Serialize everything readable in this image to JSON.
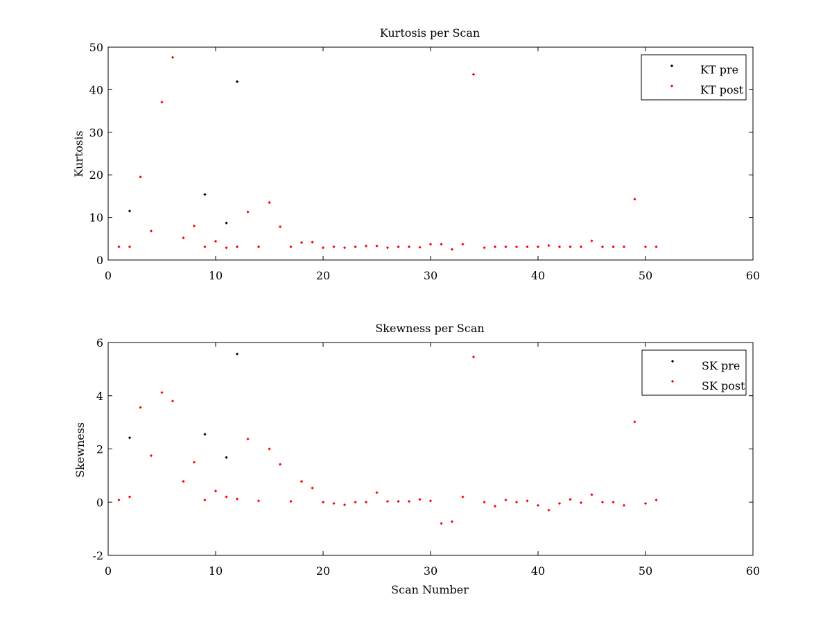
{
  "chart_data": [
    {
      "type": "scatter",
      "title": "Kurtosis per Scan",
      "xlabel": "",
      "ylabel": "Kurtosis",
      "xlim": [
        0,
        60
      ],
      "ylim": [
        0,
        50
      ],
      "xticks": [
        0,
        10,
        20,
        30,
        40,
        50,
        60
      ],
      "yticks": [
        0,
        10,
        20,
        30,
        40,
        50
      ],
      "grid": false,
      "legend_position": "top-right",
      "series": [
        {
          "name": "KT pre",
          "color": "#000000",
          "x": [
            2,
            9,
            11,
            12
          ],
          "y": [
            11.5,
            15.4,
            8.7,
            41.9
          ]
        },
        {
          "name": "KT post",
          "color": "#ff0000",
          "x": [
            1,
            2,
            3,
            4,
            5,
            6,
            7,
            8,
            9,
            10,
            11,
            12,
            13,
            14,
            15,
            16,
            17,
            18,
            19,
            20,
            21,
            22,
            23,
            24,
            25,
            26,
            27,
            28,
            29,
            30,
            31,
            32,
            33,
            34,
            35,
            36,
            37,
            38,
            39,
            40,
            41,
            42,
            43,
            44,
            45,
            46,
            47,
            48,
            49,
            50,
            51
          ],
          "y": [
            3.1,
            3.1,
            19.5,
            6.8,
            37.1,
            47.6,
            5.2,
            8.0,
            3.1,
            4.4,
            2.9,
            3.1,
            11.3,
            3.1,
            13.5,
            7.8,
            3.1,
            4.1,
            4.2,
            2.9,
            3.1,
            2.9,
            3.1,
            3.3,
            3.3,
            2.9,
            3.1,
            3.1,
            3.0,
            3.7,
            3.7,
            2.5,
            3.7,
            43.6,
            2.9,
            3.1,
            3.1,
            3.1,
            3.1,
            3.1,
            3.4,
            3.1,
            3.1,
            3.1,
            4.5,
            3.1,
            3.1,
            3.1,
            14.3,
            3.1,
            3.1
          ]
        }
      ]
    },
    {
      "type": "scatter",
      "title": "Skewness per Scan",
      "xlabel": "Scan Number",
      "ylabel": "Skewness",
      "xlim": [
        0,
        60
      ],
      "ylim": [
        -2,
        6
      ],
      "xticks": [
        0,
        10,
        20,
        30,
        40,
        50,
        60
      ],
      "yticks": [
        -2,
        0,
        2,
        4,
        6
      ],
      "grid": false,
      "legend_position": "top-right",
      "series": [
        {
          "name": "SK pre",
          "color": "#000000",
          "x": [
            2,
            9,
            11,
            12
          ],
          "y": [
            2.42,
            2.55,
            1.68,
            5.57
          ]
        },
        {
          "name": "SK post",
          "color": "#ff0000",
          "x": [
            1,
            2,
            3,
            4,
            5,
            6,
            7,
            8,
            9,
            10,
            11,
            12,
            13,
            14,
            15,
            16,
            17,
            18,
            19,
            20,
            21,
            22,
            23,
            24,
            25,
            26,
            27,
            28,
            29,
            30,
            31,
            32,
            33,
            34,
            35,
            36,
            37,
            38,
            39,
            40,
            41,
            42,
            43,
            44,
            45,
            46,
            47,
            48,
            49,
            50,
            51
          ],
          "y": [
            0.08,
            0.2,
            3.56,
            1.75,
            4.12,
            3.8,
            0.78,
            1.5,
            0.08,
            0.42,
            0.2,
            0.12,
            2.37,
            0.05,
            2.0,
            1.42,
            0.03,
            0.78,
            0.53,
            0.0,
            -0.05,
            -0.1,
            0.0,
            0.0,
            0.36,
            0.03,
            0.03,
            0.03,
            0.1,
            0.05,
            -0.8,
            -0.73,
            0.2,
            5.46,
            0.0,
            -0.15,
            0.08,
            0.0,
            0.05,
            -0.12,
            -0.3,
            -0.05,
            0.1,
            -0.02,
            0.28,
            0.0,
            0.0,
            -0.12,
            3.02,
            -0.05,
            0.08
          ]
        }
      ]
    }
  ]
}
